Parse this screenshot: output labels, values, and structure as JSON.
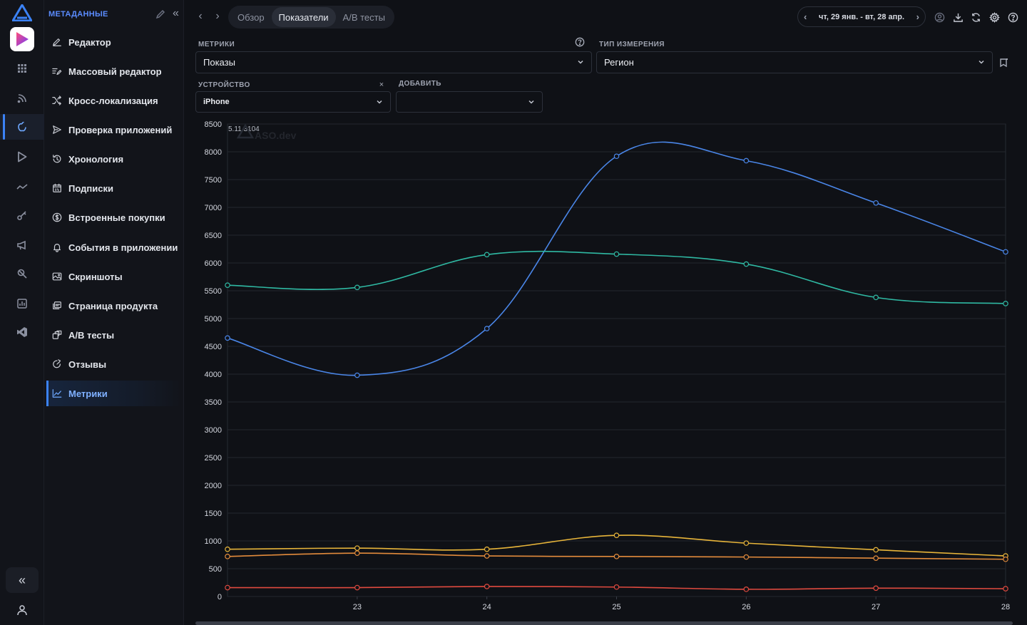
{
  "sidebar": {
    "title": "МЕТАДАННЫЕ",
    "items": [
      {
        "label": "Редактор",
        "icon": "edit-icon"
      },
      {
        "label": "Массовый редактор",
        "icon": "bulk-edit-icon"
      },
      {
        "label": "Кросс-локализация",
        "icon": "shuffle-icon"
      },
      {
        "label": "Проверка приложений",
        "icon": "send-icon"
      },
      {
        "label": "Хронология",
        "icon": "history-icon"
      },
      {
        "label": "Подписки",
        "icon": "calendar-icon"
      },
      {
        "label": "Встроенные покупки",
        "icon": "dollar-icon"
      },
      {
        "label": "События в приложении",
        "icon": "bell-icon"
      },
      {
        "label": "Скриншоты",
        "icon": "image-icon"
      },
      {
        "label": "Страница продукта",
        "icon": "pages-icon"
      },
      {
        "label": "A/B тесты",
        "icon": "ab-icon"
      },
      {
        "label": "Отзывы",
        "icon": "reply-icon"
      },
      {
        "label": "Метрики",
        "icon": "chart-icon",
        "active": true
      }
    ]
  },
  "topbar": {
    "tabs": [
      "Обзор",
      "Показатели",
      "A/B тесты"
    ],
    "active_tab": "Показатели",
    "date_range": "чт, 29 янв. - вт, 28 апр."
  },
  "filters": {
    "metrics_label": "МЕТРИКИ",
    "metrics_value": "Показы",
    "dimension_label": "ТИП ИЗМЕРЕНИЯ",
    "dimension_value": "Регион",
    "device_label": "УСТРОЙСТВО",
    "device_value": "iPhone",
    "add_label": "ДОБАВИТЬ",
    "add_value": ""
  },
  "colors": {
    "accent": "#3b82f6",
    "series_blue": "#4a86e8",
    "series_teal": "#2fb9a3",
    "series_yellow": "#e8b53a",
    "series_orange": "#e38b3c",
    "series_red": "#e04a3f"
  },
  "chart_data": {
    "type": "line",
    "watermark": "ASO.dev",
    "version_label": "5.11.3104",
    "x": [
      22,
      23,
      24,
      25,
      26,
      27,
      28
    ],
    "x_tick_labels": [
      "23",
      "24",
      "25",
      "26",
      "27",
      "28"
    ],
    "xlim": [
      22,
      28
    ],
    "ylim": [
      0,
      8500
    ],
    "y_ticks": [
      0,
      500,
      1000,
      1500,
      2000,
      2500,
      3000,
      3500,
      4000,
      4500,
      5000,
      5500,
      6000,
      6500,
      7000,
      7500,
      8000,
      8500
    ],
    "grid": true,
    "series": [
      {
        "color": "#4a86e8",
        "values": [
          4650,
          3980,
          4820,
          7920,
          7840,
          7080,
          6200
        ]
      },
      {
        "color": "#2fb9a3",
        "values": [
          5600,
          5560,
          6150,
          6160,
          5980,
          5380,
          5270
        ]
      },
      {
        "color": "#e8b53a",
        "values": [
          850,
          870,
          850,
          1100,
          960,
          840,
          730
        ]
      },
      {
        "color": "#e38b3c",
        "values": [
          720,
          780,
          730,
          720,
          710,
          690,
          670
        ]
      },
      {
        "color": "#e04a3f",
        "values": [
          160,
          160,
          180,
          170,
          130,
          150,
          140
        ]
      }
    ]
  }
}
